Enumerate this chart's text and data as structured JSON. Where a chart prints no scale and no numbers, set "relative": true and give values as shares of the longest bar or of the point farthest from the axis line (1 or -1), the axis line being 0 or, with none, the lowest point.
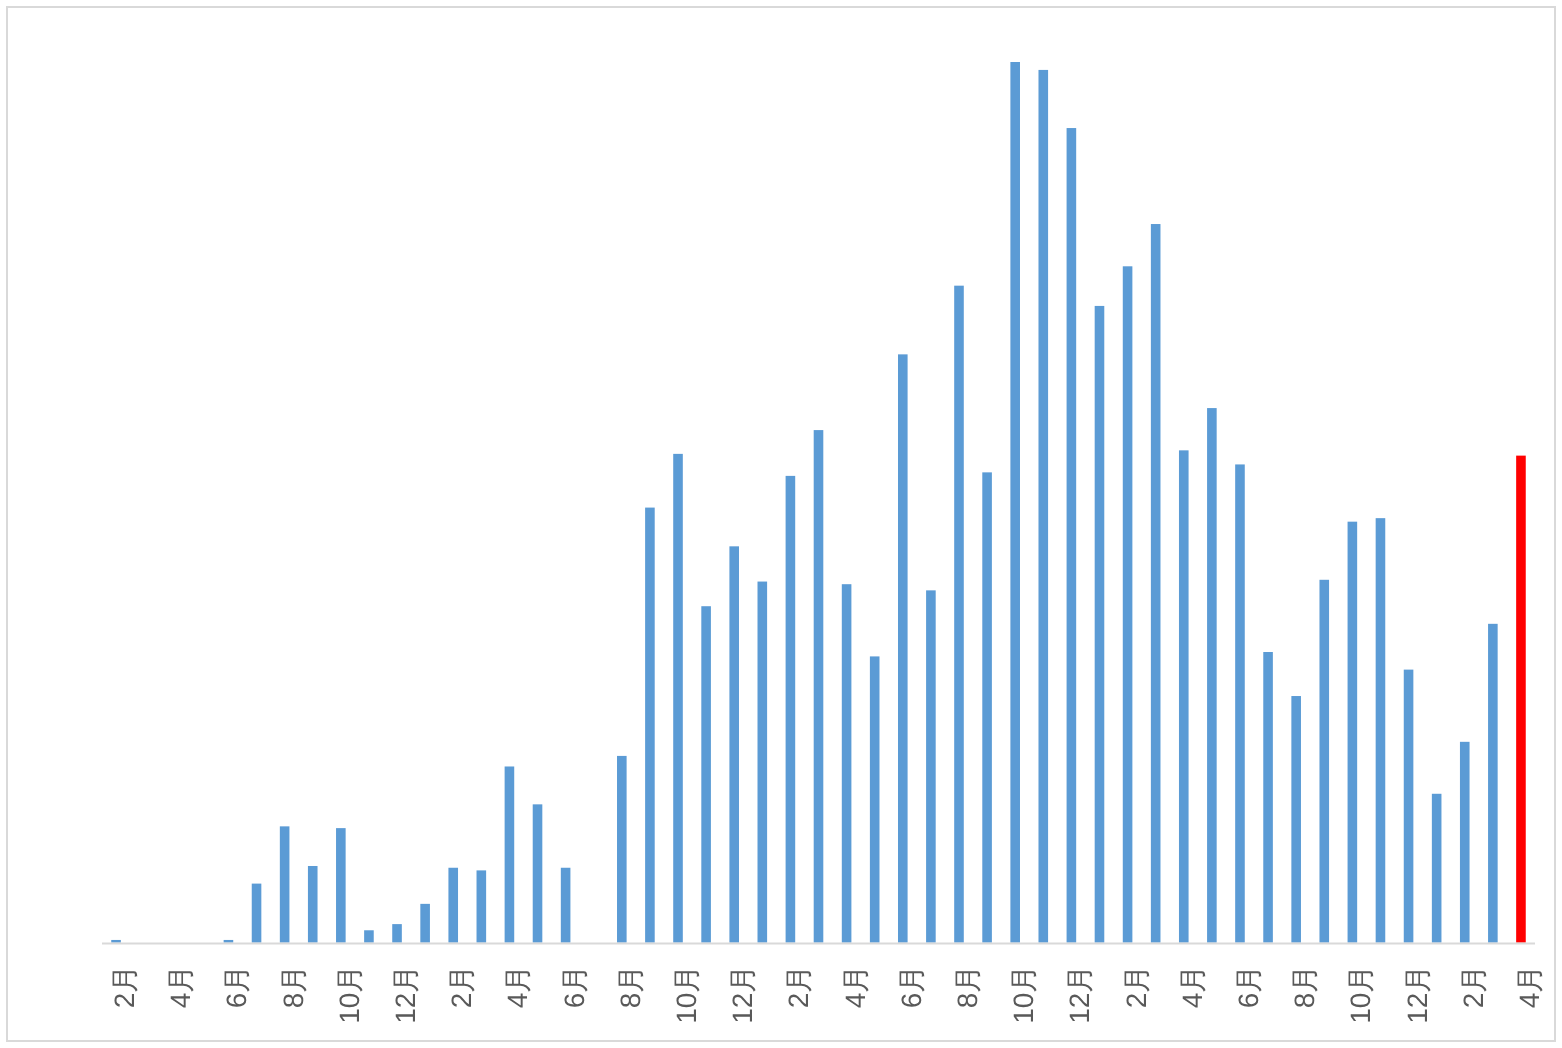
{
  "chart_data": {
    "type": "bar",
    "relative": true,
    "categories": [
      "2月",
      null,
      "4月",
      null,
      "6月",
      null,
      "8月",
      null,
      "10月",
      null,
      "12月",
      null,
      "2月",
      null,
      "4月",
      null,
      "6月",
      null,
      "8月",
      null,
      "10月",
      null,
      "12月",
      null,
      "2月",
      null,
      "4月",
      null,
      "6月",
      null,
      "8月",
      null,
      "10月",
      null,
      "12月",
      null,
      "2月",
      null,
      "4月",
      null,
      "6月",
      null,
      "8月",
      null,
      "10月",
      null,
      "12月",
      null,
      "2月",
      null,
      "4月"
    ],
    "values": [
      0.003,
      0,
      0,
      0,
      0.003,
      0.067,
      0.132,
      0.087,
      0.13,
      0.014,
      0.021,
      0.044,
      0.085,
      0.082,
      0.2,
      0.157,
      0.085,
      0,
      0.212,
      0.494,
      0.555,
      0.382,
      0.45,
      0.41,
      0.53,
      0.582,
      0.407,
      0.325,
      0.668,
      0.4,
      0.746,
      0.534,
      1,
      0.991,
      0.925,
      0.723,
      0.768,
      0.816,
      0.559,
      0.607,
      0.543,
      0.33,
      0.28,
      0.412,
      0.478,
      0.482,
      0.31,
      0.169,
      0.228,
      0.362,
      0.553
    ],
    "colors": [
      "#5b9bd5",
      "#5b9bd5",
      "#5b9bd5",
      "#5b9bd5",
      "#5b9bd5",
      "#5b9bd5",
      "#5b9bd5",
      "#5b9bd5",
      "#5b9bd5",
      "#5b9bd5",
      "#5b9bd5",
      "#5b9bd5",
      "#5b9bd5",
      "#5b9bd5",
      "#5b9bd5",
      "#5b9bd5",
      "#5b9bd5",
      "#5b9bd5",
      "#5b9bd5",
      "#5b9bd5",
      "#5b9bd5",
      "#5b9bd5",
      "#5b9bd5",
      "#5b9bd5",
      "#5b9bd5",
      "#5b9bd5",
      "#5b9bd5",
      "#5b9bd5",
      "#5b9bd5",
      "#5b9bd5",
      "#5b9bd5",
      "#5b9bd5",
      "#5b9bd5",
      "#5b9bd5",
      "#5b9bd5",
      "#5b9bd5",
      "#5b9bd5",
      "#5b9bd5",
      "#5b9bd5",
      "#5b9bd5",
      "#5b9bd5",
      "#5b9bd5",
      "#5b9bd5",
      "#5b9bd5",
      "#5b9bd5",
      "#5b9bd5",
      "#5b9bd5",
      "#5b9bd5",
      "#5b9bd5",
      "#5b9bd5",
      "#ff0000"
    ]
  }
}
